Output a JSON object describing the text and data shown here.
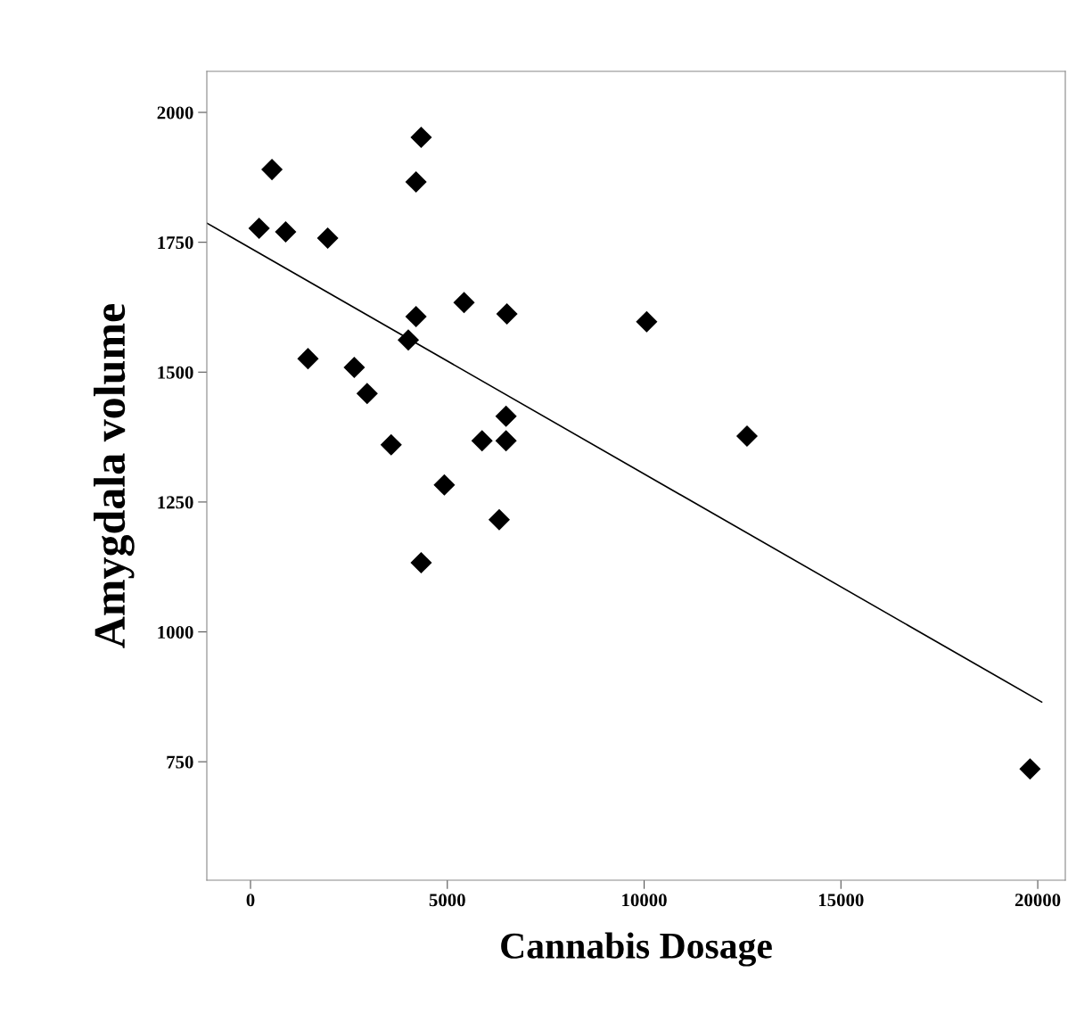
{
  "chart_data": {
    "type": "scatter",
    "xlabel": "Cannabis Dosage",
    "ylabel": "Amygdala volume",
    "xlim": [
      -1110,
      20700
    ],
    "ylim": [
      522,
      2079
    ],
    "xticks": [
      0,
      5000,
      10000,
      15000,
      20000
    ],
    "yticks": [
      750,
      1000,
      1250,
      1500,
      1750,
      2000
    ],
    "grid": false,
    "legend": false,
    "series": [
      {
        "marker": "diamond",
        "color": "#000000",
        "x": [
          218,
          545,
          893,
          1961,
          1460,
          2636,
          2963,
          3573,
          4009,
          4205,
          4205,
          4336,
          4336,
          4924,
          5425,
          5882,
          6318,
          6492,
          6492,
          6514,
          10065,
          12614,
          19804
        ],
        "values": [
          1777,
          1890,
          1770,
          1758,
          1526,
          1509,
          1459,
          1360,
          1562,
          1607,
          1866,
          1952,
          1133,
          1283,
          1634,
          1368,
          1216,
          1415,
          1368,
          1612,
          1597,
          1377,
          736
        ]
      },
      {
        "type": "line",
        "color": "#000000",
        "line_style": "solid",
        "x": [
          -1110,
          20100
        ],
        "values": [
          1787,
          865
        ]
      }
    ]
  }
}
